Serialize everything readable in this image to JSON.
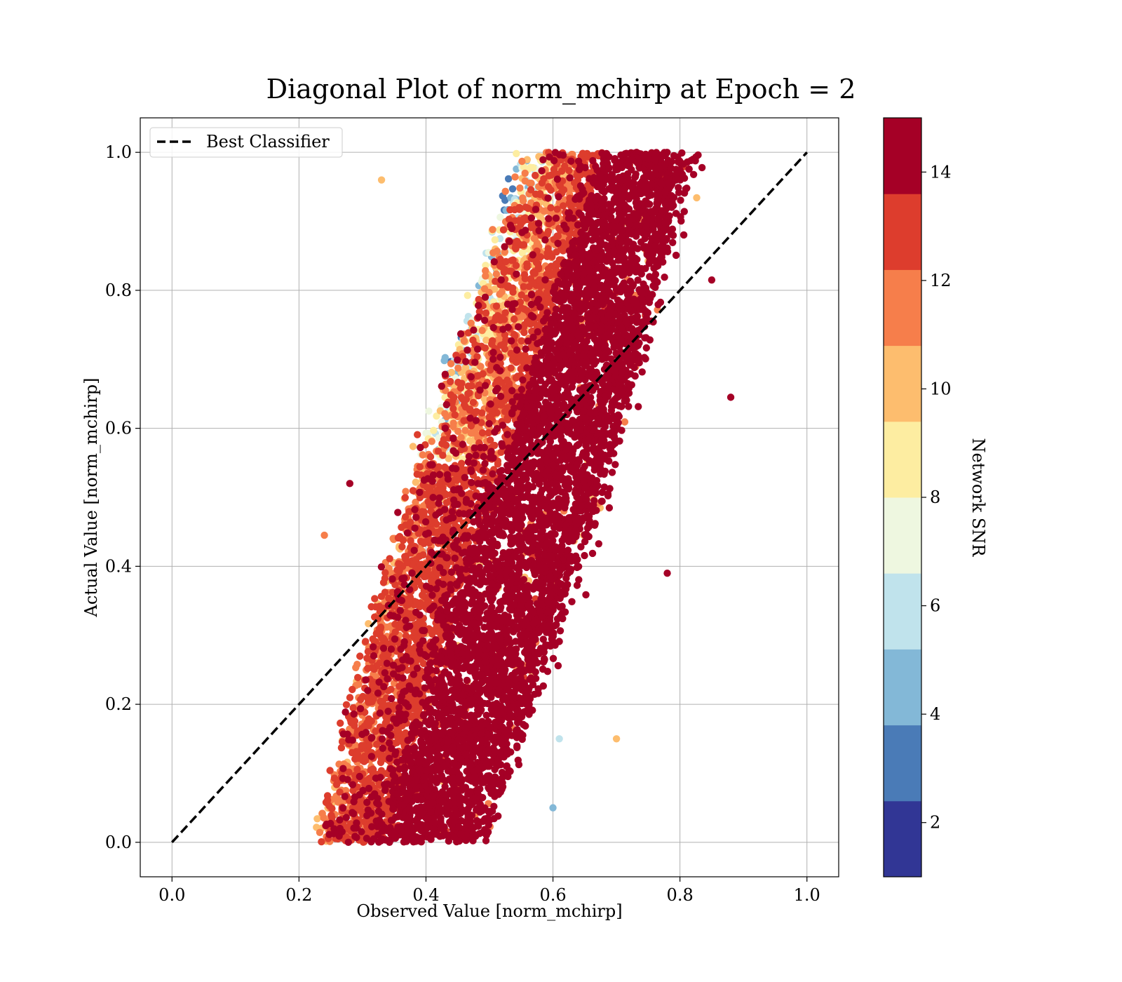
{
  "chart_data": {
    "type": "scatter",
    "title": "Diagonal Plot of norm_mchirp at Epoch = 2",
    "xlabel": "Observed Value [norm_mchirp]",
    "ylabel": "Actual Value [norm_mchirp]",
    "xlim": [
      -0.05,
      1.05
    ],
    "ylim": [
      -0.05,
      1.05
    ],
    "xticks": [
      "0.0",
      "0.2",
      "0.4",
      "0.6",
      "0.8",
      "1.0"
    ],
    "yticks": [
      "0.0",
      "0.2",
      "0.4",
      "0.6",
      "0.8",
      "1.0"
    ],
    "grid": true,
    "legend": {
      "placement": "upper-left",
      "entries": [
        "Best Classifier"
      ]
    },
    "series": [
      {
        "name": "Best Classifier",
        "kind": "line",
        "style": "dashed",
        "color": "#000000",
        "x": [
          0.0,
          1.0
        ],
        "y": [
          0.0,
          1.0
        ]
      }
    ],
    "scatter": {
      "color_variable": "Network SNR",
      "approx_point_count": 60000,
      "description_regions": [
        {
          "x_range": [
            0.24,
            0.8
          ],
          "y_range": [
            0.0,
            1.0
          ],
          "band_slope": 1.0
        }
      ],
      "sample_points": [
        {
          "x": 0.24,
          "y": 0.445,
          "snr": 11
        },
        {
          "x": 0.88,
          "y": 0.645,
          "snr": 14
        },
        {
          "x": 0.85,
          "y": 0.815,
          "snr": 14
        },
        {
          "x": 0.78,
          "y": 0.39,
          "snr": 14
        },
        {
          "x": 0.7,
          "y": 0.15,
          "snr": 10
        },
        {
          "x": 0.61,
          "y": 0.15,
          "snr": 6
        },
        {
          "x": 0.6,
          "y": 0.05,
          "snr": 4
        },
        {
          "x": 0.33,
          "y": 0.96,
          "snr": 10
        },
        {
          "x": 0.28,
          "y": 0.52,
          "snr": 14
        },
        {
          "x": 0.76,
          "y": 0.99,
          "snr": 14
        }
      ]
    },
    "colorbar": {
      "label": "Network SNR",
      "range": [
        1,
        15
      ],
      "ticks": [
        "2",
        "4",
        "6",
        "8",
        "10",
        "12",
        "14"
      ],
      "levels": [
        {
          "from": 1,
          "to": 2.4,
          "color": "#313695"
        },
        {
          "from": 2.4,
          "to": 3.8,
          "color": "#4a7bb7"
        },
        {
          "from": 3.8,
          "to": 5.2,
          "color": "#83b8d7"
        },
        {
          "from": 5.2,
          "to": 6.6,
          "color": "#c0e3ec"
        },
        {
          "from": 6.6,
          "to": 8.0,
          "color": "#eef7e0"
        },
        {
          "from": 8.0,
          "to": 9.4,
          "color": "#fdeda1"
        },
        {
          "from": 9.4,
          "to": 10.8,
          "color": "#fdbd6e"
        },
        {
          "from": 10.8,
          "to": 12.2,
          "color": "#f67e4b"
        },
        {
          "from": 12.2,
          "to": 13.6,
          "color": "#dd3d2d"
        },
        {
          "from": 13.6,
          "to": 15,
          "color": "#a50026"
        }
      ]
    }
  }
}
